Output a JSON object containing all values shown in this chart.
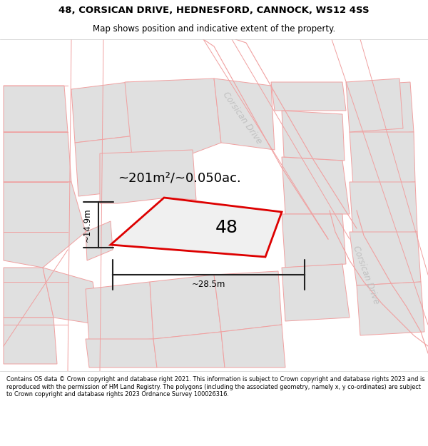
{
  "title_line1": "48, CORSICAN DRIVE, HEDNESFORD, CANNOCK, WS12 4SS",
  "title_line2": "Map shows position and indicative extent of the property.",
  "footer_text": "Contains OS data © Crown copyright and database right 2021. This information is subject to Crown copyright and database rights 2023 and is reproduced with the permission of HM Land Registry. The polygons (including the associated geometry, namely x, y co-ordinates) are subject to Crown copyright and database rights 2023 Ordnance Survey 100026316.",
  "area_text": "~201m²/~0.050ac.",
  "house_number": "48",
  "width_label": "~28.5m",
  "height_label": "~14.9m",
  "property_stroke": "#dd0000",
  "dim_color": "#222222",
  "title_fontsize": 9.5,
  "subtitle_fontsize": 8.5,
  "road_label_color": "#c0c0c0",
  "corsican_drive_label1": "Corsican Drive",
  "corsican_drive_label2": "Corsican Drive",
  "road_label_rotation1": -55,
  "road_label_rotation2": -70,
  "block_fill": "#e0e0e0",
  "road_fill": "#ffffff",
  "road_edge": "#f0a0a0",
  "bg_fill": "#ffffff"
}
